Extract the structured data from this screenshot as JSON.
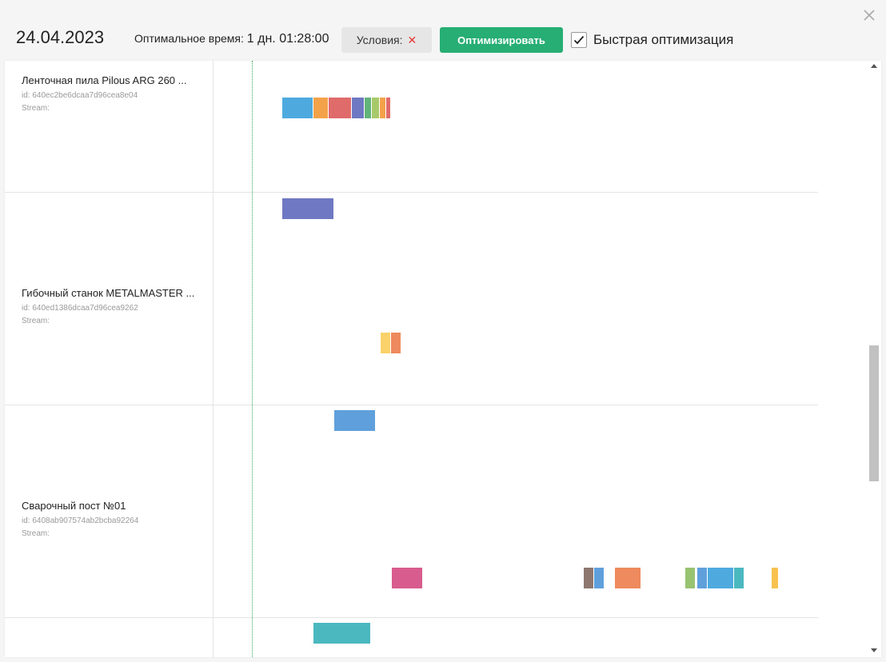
{
  "header": {
    "date": "24.04.2023",
    "optimal_time_label": "Оптимальное время:",
    "optimal_time_value": "1 дн. 01:28:00",
    "conditions_label": "Условия:",
    "conditions_clear": "✕",
    "optimize_label": "Оптимизировать",
    "fast_optimization_label": "Быстрая оптимизация",
    "fast_optimization_checked": true,
    "close_icon": "close-icon"
  },
  "machines": [
    {
      "name": "Ленточная пила Pilous ARG 260 ...",
      "id": "id: 640ec2be6dcaa7d96cea8e04",
      "stream": "Stream:"
    },
    {
      "name": "Гибочный станок METALMASTER ...",
      "id": "id: 640ed1386dcaa7d96cea9262",
      "stream": "Stream:"
    },
    {
      "name": "Сварочный пост №01",
      "id": "id: 6408ab907574ab2bcba92264",
      "stream": "Stream:"
    }
  ],
  "colors": {
    "blue": "#4eaade",
    "orange": "#f4a24a",
    "red": "#e06b6b",
    "indigo": "#6f78c2",
    "teal": "#4bb8c0",
    "green": "#62b37a",
    "lime": "#a7c96a",
    "yellow": "#fbd26a",
    "salmon": "#ee8a5e",
    "sky": "#5fa0dc",
    "pink": "#d85c8d",
    "brown": "#8d776e",
    "olive": "#98c370",
    "amber": "#f9c250",
    "now_line": "#3aa95a",
    "accent": "#27ae74"
  }
}
